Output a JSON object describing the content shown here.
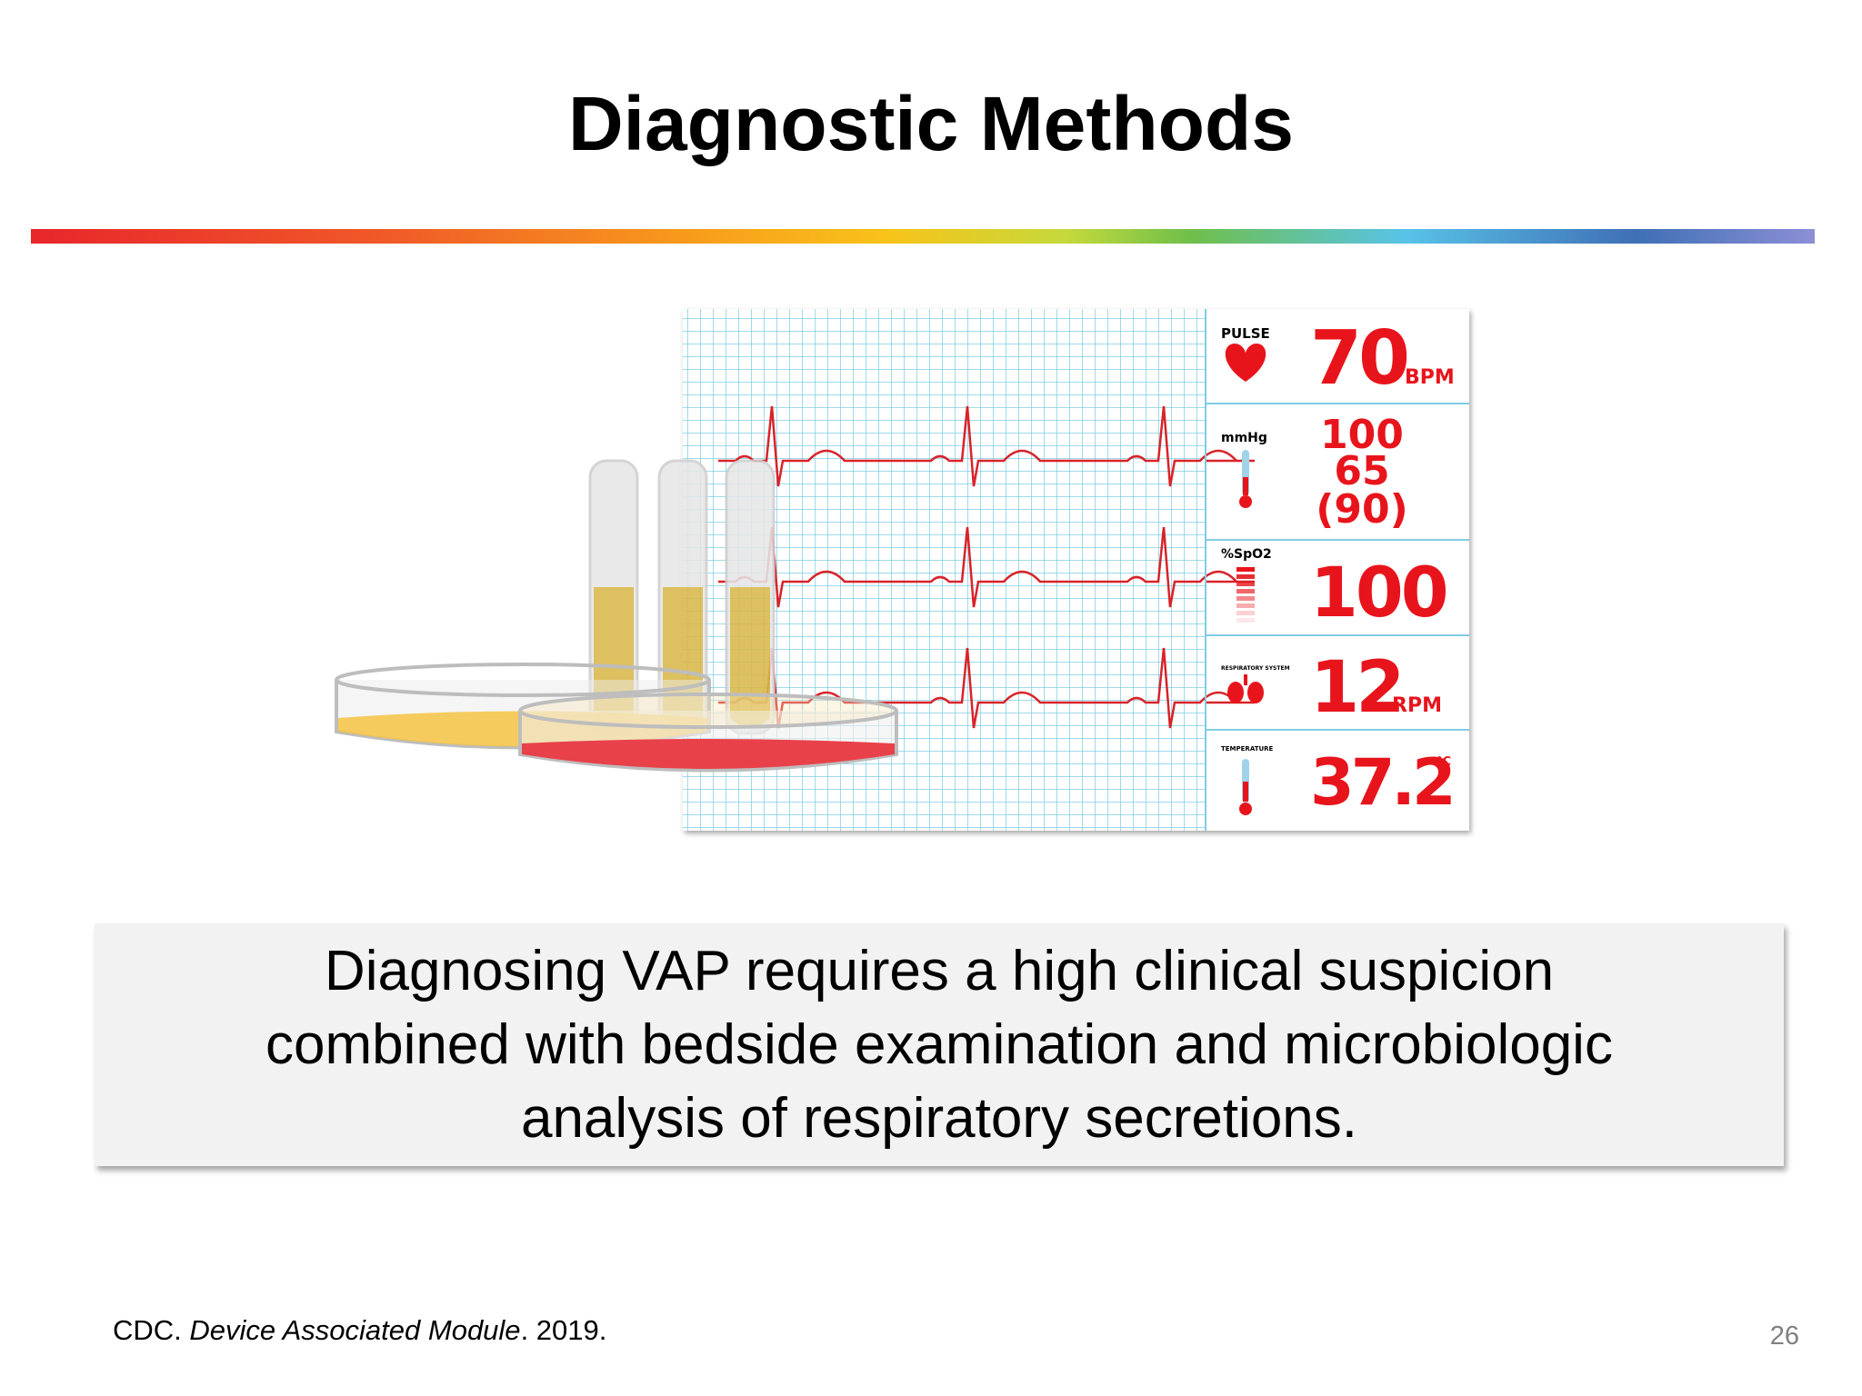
{
  "title": "Diagnostic Methods",
  "monitor": {
    "rows": [
      {
        "label": "PULSE",
        "value": "70",
        "unit": "BPM"
      },
      {
        "label": "mmHg",
        "values": [
          "100",
          "65",
          "(90)"
        ]
      },
      {
        "label": "%SpO2",
        "value": "100"
      },
      {
        "label": "RESPIRATORY SYSTEM",
        "value": "12",
        "unit": "RPM"
      },
      {
        "label": "TEMPERATURE",
        "value": "37.2",
        "unit": "°C"
      }
    ]
  },
  "callout": {
    "lines": [
      "Diagnosing VAP requires a high clinical suspicion",
      "combined with bedside examination and microbiologic",
      "analysis of respiratory secretions."
    ]
  },
  "citation": {
    "parts": [
      "CDC.",
      "Device Associated Module",
      ". 2019."
    ]
  },
  "page_number": "26"
}
